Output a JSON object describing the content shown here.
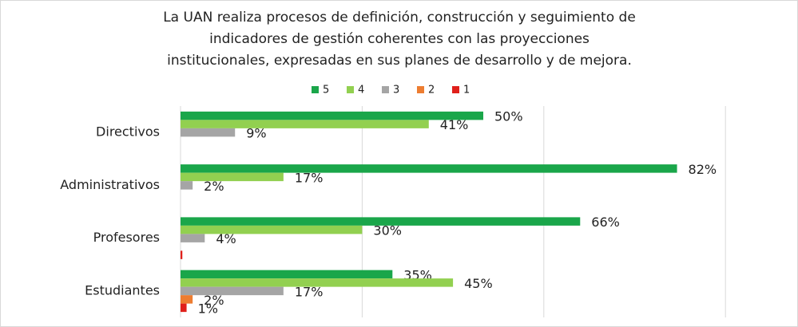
{
  "chart_data": {
    "type": "bar",
    "orientation": "horizontal",
    "title": [
      "La UAN realiza procesos de definición, construcción y seguimiento de",
      "indicadores de gestión coherentes con las proyecciones",
      "institucionales, expresadas en sus planes de desarrollo y de mejora."
    ],
    "categories": [
      "Directivos",
      "Administrativos",
      "Profesores",
      "Estudiantes"
    ],
    "series": [
      {
        "name": "5",
        "color": "#1aa64a",
        "values": [
          50,
          82,
          66,
          35
        ],
        "value_labels": [
          "50%",
          "82%",
          "66%",
          "35%"
        ]
      },
      {
        "name": "4",
        "color": "#92d050",
        "values": [
          41,
          17,
          30,
          45
        ],
        "value_labels": [
          "41%",
          "17%",
          "30%",
          "45%"
        ]
      },
      {
        "name": "3",
        "color": "#a5a5a5",
        "values": [
          9,
          2,
          4,
          17
        ],
        "value_labels": [
          "9%",
          "2%",
          "4%",
          "17%"
        ]
      },
      {
        "name": "2",
        "color": "#ed7d31",
        "values": [
          null,
          null,
          null,
          2
        ],
        "value_labels": [
          null,
          null,
          null,
          "2%"
        ]
      },
      {
        "name": "1",
        "color": "#e0201b",
        "values": [
          null,
          null,
          0.3,
          1
        ],
        "value_labels": [
          null,
          null,
          null,
          "1%"
        ]
      }
    ],
    "xlim": [
      0,
      100
    ],
    "xticks": [
      0,
      30,
      60,
      90
    ],
    "grid": true,
    "legend": "top"
  }
}
